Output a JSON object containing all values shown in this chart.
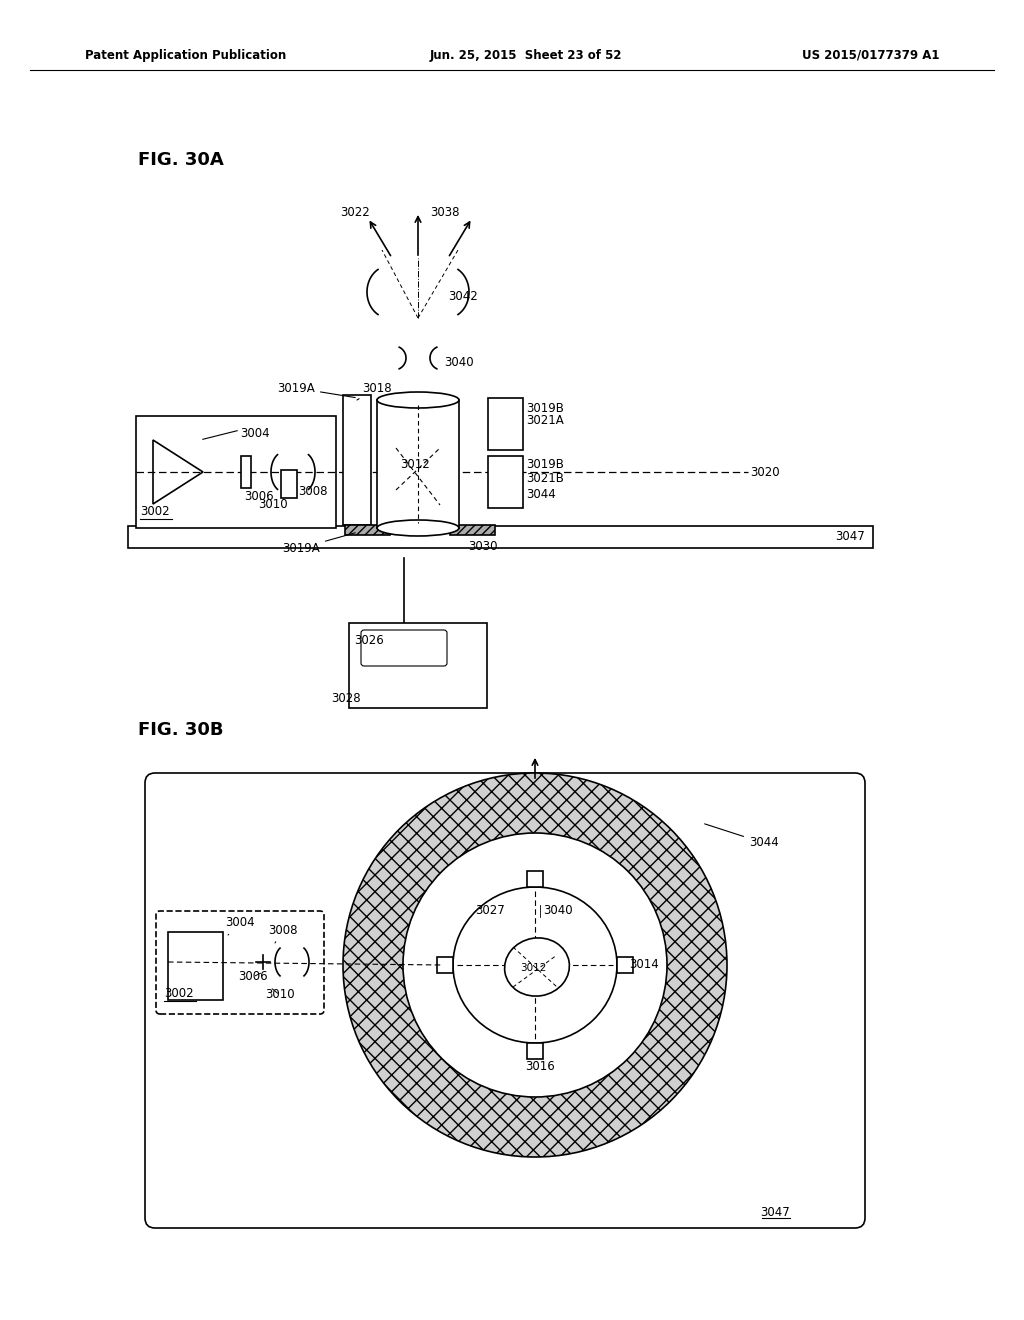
{
  "bg_color": "#ffffff",
  "header_left": "Patent Application Publication",
  "header_mid": "Jun. 25, 2015  Sheet 23 of 52",
  "header_right": "US 2015/0177379 A1",
  "fig30a_label": "FIG. 30A",
  "fig30b_label": "FIG. 30B"
}
